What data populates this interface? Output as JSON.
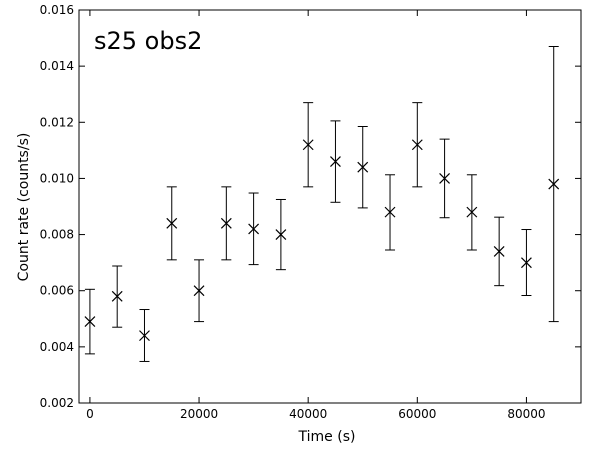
{
  "chart_data": {
    "type": "scatter",
    "title": "s25 obs2",
    "xlabel": "Time (s)",
    "ylabel": "Count rate (counts/s)",
    "xlim": [
      -2000,
      90000
    ],
    "ylim": [
      0.002,
      0.016
    ],
    "x_ticks": [
      0,
      20000,
      40000,
      60000,
      80000
    ],
    "x_tick_labels": [
      "0",
      "20000",
      "40000",
      "60000",
      "80000"
    ],
    "y_ticks": [
      0.002,
      0.004,
      0.006,
      0.008,
      0.01,
      0.012,
      0.014,
      0.016
    ],
    "y_tick_labels": [
      "0.002",
      "0.004",
      "0.006",
      "0.008",
      "0.010",
      "0.012",
      "0.014",
      "0.016"
    ],
    "grid": false,
    "legend": "none",
    "marker": "x",
    "color": "#000000",
    "series": [
      {
        "x": [
          0,
          5000,
          10000,
          15000,
          20000,
          25000,
          30000,
          35000,
          40000,
          45000,
          50000,
          55000,
          60000,
          65000,
          70000,
          75000,
          80000,
          85000
        ],
        "y": [
          0.0049,
          0.0058,
          0.0044,
          0.0084,
          0.006,
          0.0084,
          0.0082,
          0.008,
          0.0112,
          0.0106,
          0.0104,
          0.0088,
          0.0112,
          0.01,
          0.0088,
          0.0074,
          0.007,
          0.0098
        ],
        "yerr_low": [
          0.00375,
          0.0047,
          0.00348,
          0.0071,
          0.0049,
          0.0071,
          0.00693,
          0.00675,
          0.0097,
          0.00915,
          0.00895,
          0.00745,
          0.0097,
          0.0086,
          0.00745,
          0.00618,
          0.00583,
          0.0049
        ],
        "yerr_high": [
          0.00605,
          0.00688,
          0.00533,
          0.0097,
          0.0071,
          0.0097,
          0.00948,
          0.00925,
          0.0127,
          0.01205,
          0.01185,
          0.01013,
          0.0127,
          0.0114,
          0.01013,
          0.00862,
          0.00818,
          0.0147
        ]
      }
    ]
  }
}
